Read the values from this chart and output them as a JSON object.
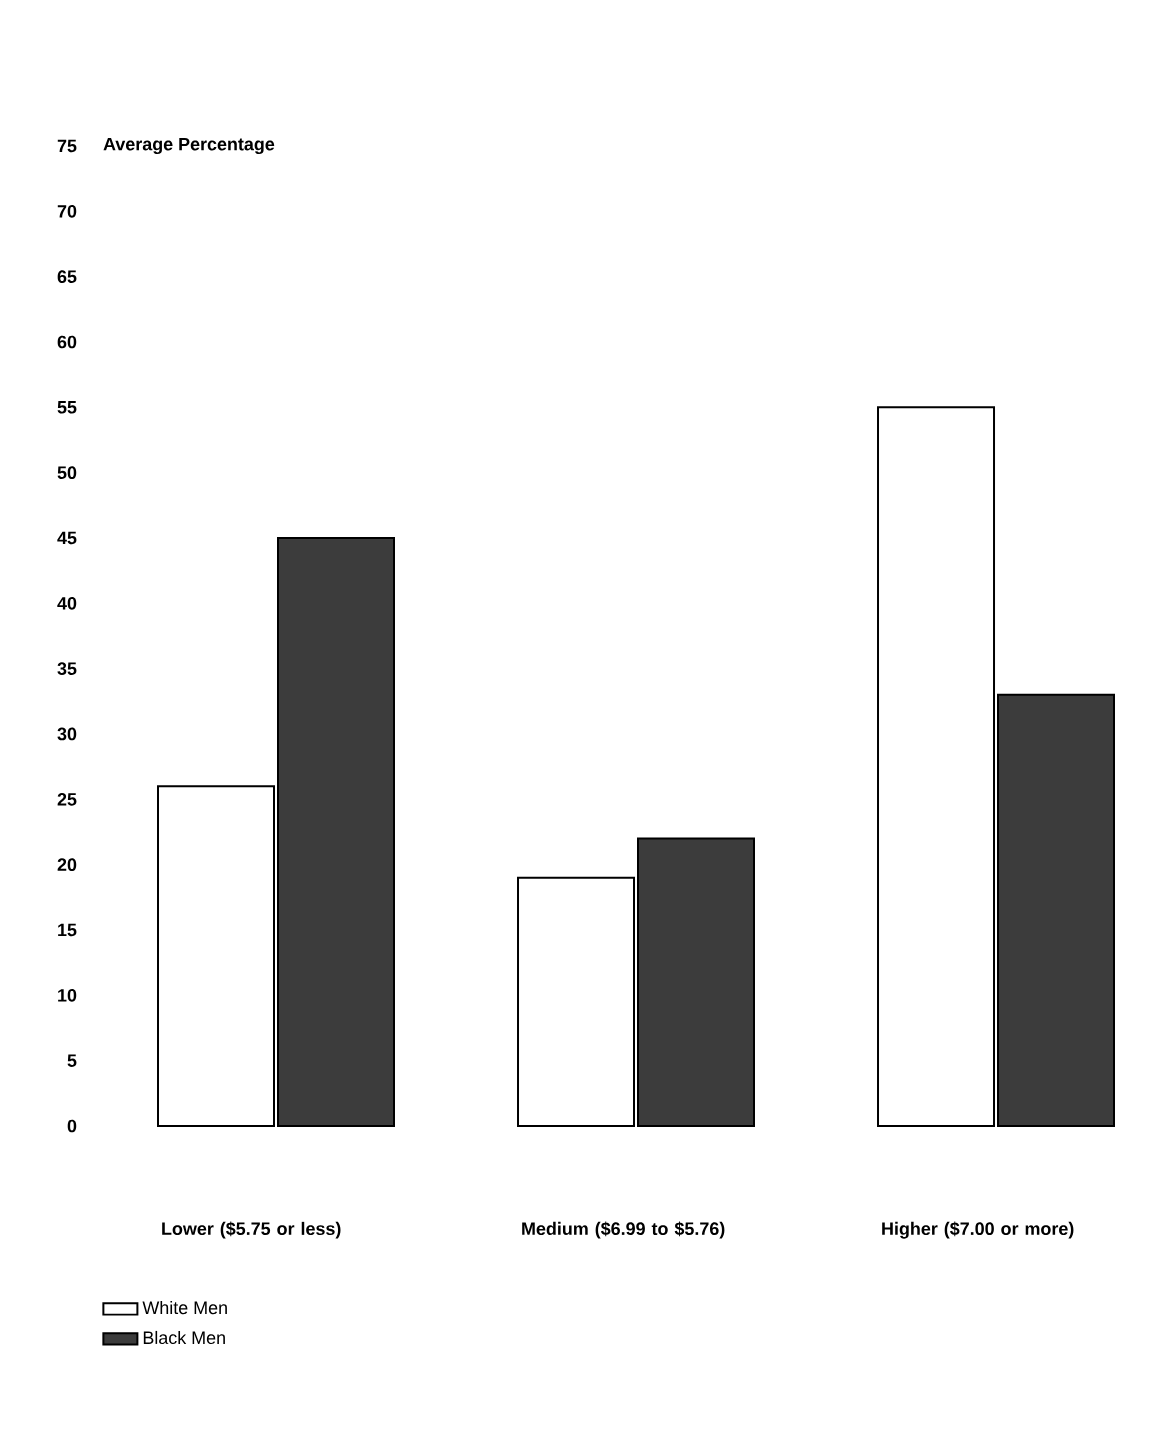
{
  "chart_data": {
    "type": "bar",
    "ylabel": "Average Percentage",
    "categories": [
      "Lower ($5.75 or less)",
      "Medium ($6.99 to $5.76)",
      "Higher ($7.00 or more)"
    ],
    "series": [
      {
        "name": "White Men",
        "color": "#ffffff",
        "values": [
          26,
          19,
          55
        ]
      },
      {
        "name": "Black Men",
        "color": "#3c3c3c",
        "values": [
          45,
          22,
          33
        ]
      }
    ],
    "ylim": [
      0,
      75
    ],
    "yticks": [
      0,
      5,
      10,
      15,
      20,
      25,
      30,
      35,
      40,
      45,
      50,
      55,
      60,
      65,
      70,
      75
    ],
    "legend": "bottom"
  }
}
